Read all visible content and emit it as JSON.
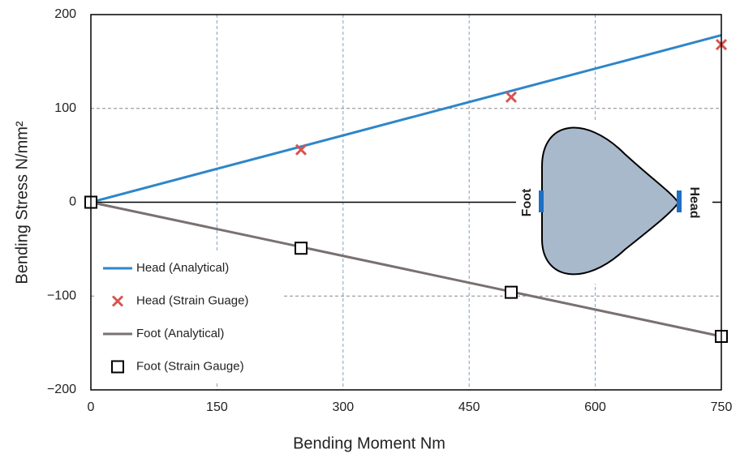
{
  "chart_data": {
    "type": "line",
    "x_label": "Bending Moment Nm",
    "y_label": "Bending Stress  N/mm²",
    "xlim": [
      0,
      750
    ],
    "xticks": [
      0,
      150,
      300,
      450,
      600,
      750
    ],
    "ylim": [
      -200,
      200
    ],
    "yticks": [
      200,
      100,
      0,
      {
        "value": -100,
        "label": "−100"
      },
      {
        "value": -200,
        "label": "−200"
      }
    ],
    "grid": true,
    "legend": "lower left",
    "annotations": [
      "Foot",
      "Head"
    ],
    "series": [
      {
        "name": "Head (Analytical)",
        "color": "#2e86c8",
        "style": "line",
        "x": [
          0,
          750
        ],
        "values": [
          0,
          178
        ]
      },
      {
        "name": "Head (Strain Guage)",
        "color": "#d9534f",
        "style": "x",
        "x": [
          0,
          250,
          500,
          750
        ],
        "values": [
          0,
          56,
          112,
          168
        ]
      },
      {
        "name": "Foot (Analytical)",
        "color": "#7a7070",
        "style": "line",
        "x": [
          0,
          750
        ],
        "values": [
          0,
          -143
        ]
      },
      {
        "name": "Foot (Strain Gauge)",
        "color": "#000000",
        "style": "square",
        "x": [
          0,
          250,
          500,
          750
        ],
        "values": [
          0,
          -49,
          -96,
          -143
        ]
      }
    ]
  }
}
